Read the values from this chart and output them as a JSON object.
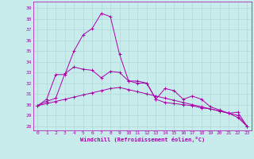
{
  "xlabel": "Windchill (Refroidissement éolien,°C)",
  "bg_color": "#c8ecec",
  "grid_color": "#b0d8d8",
  "line_color": "#aa00aa",
  "x_ticks": [
    0,
    1,
    2,
    3,
    4,
    5,
    6,
    7,
    8,
    9,
    10,
    11,
    12,
    13,
    14,
    15,
    16,
    17,
    18,
    19,
    20,
    21,
    22,
    23
  ],
  "y_ticks": [
    28,
    29,
    30,
    31,
    32,
    33,
    34,
    35,
    36,
    37,
    38,
    39
  ],
  "ylim": [
    27.6,
    39.6
  ],
  "xlim": [
    -0.5,
    23.5
  ],
  "series1": [
    29.9,
    30.5,
    32.8,
    32.8,
    35.0,
    36.5,
    37.1,
    38.5,
    38.2,
    34.7,
    32.2,
    32.2,
    32.0,
    30.5,
    31.5,
    31.3,
    30.5,
    30.8,
    30.5,
    29.8,
    29.5,
    29.2,
    29.3,
    28.0
  ],
  "series2": [
    29.9,
    30.3,
    30.6,
    32.9,
    33.5,
    33.3,
    33.2,
    32.5,
    33.1,
    33.0,
    32.2,
    32.0,
    32.0,
    30.5,
    30.2,
    30.1,
    30.0,
    29.9,
    29.7,
    29.6,
    29.4,
    29.2,
    28.8,
    28.0
  ],
  "series3": [
    29.9,
    30.1,
    30.3,
    30.5,
    30.7,
    30.9,
    31.1,
    31.3,
    31.5,
    31.6,
    31.4,
    31.2,
    31.0,
    30.8,
    30.6,
    30.4,
    30.2,
    30.0,
    29.8,
    29.6,
    29.4,
    29.2,
    29.0,
    28.0
  ]
}
